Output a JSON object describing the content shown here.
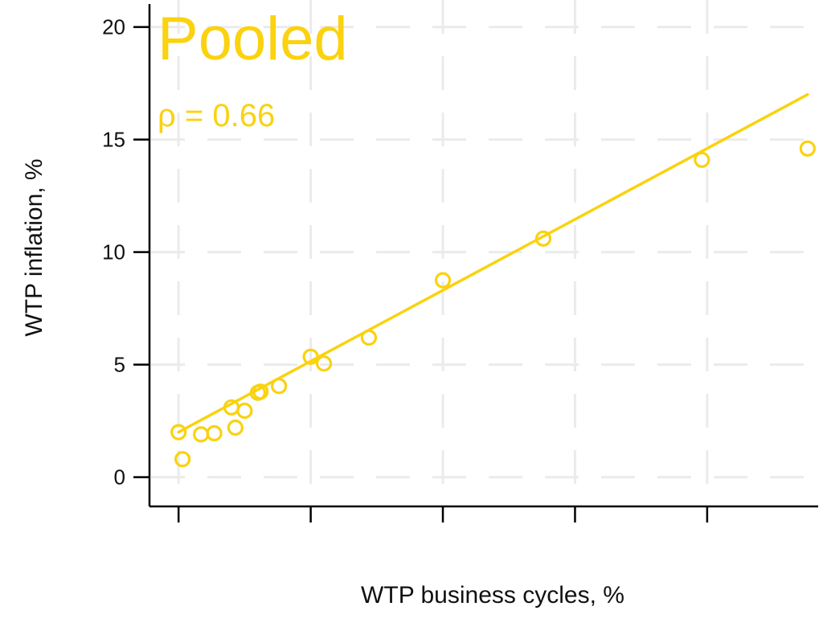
{
  "chart_data": {
    "type": "scatter",
    "title": "Pooled",
    "annotation": "ρ = 0.66",
    "xlabel": "WTP business cycles, %",
    "ylabel": "WTP inflation, %",
    "xlim": [
      -1.1,
      24.2
    ],
    "ylim": [
      -1.3,
      21.2
    ],
    "x_ticks": [
      0,
      5,
      10,
      15,
      20,
      25
    ],
    "y_ticks": [
      0,
      5,
      10,
      15,
      20
    ],
    "y_tick_labels": [
      "0",
      "5",
      "10",
      "15",
      "20"
    ],
    "grid": true,
    "color": "#FAD20F",
    "grid_color": "#EBEBEB",
    "series": [
      {
        "points": [
          {
            "x": 0.0,
            "y": 2.0
          },
          {
            "x": 0.15,
            "y": 0.8
          },
          {
            "x": 0.85,
            "y": 1.9
          },
          {
            "x": 1.35,
            "y": 1.95
          },
          {
            "x": 2.0,
            "y": 3.1
          },
          {
            "x": 2.15,
            "y": 2.2
          },
          {
            "x": 2.5,
            "y": 2.95
          },
          {
            "x": 3.0,
            "y": 3.75
          },
          {
            "x": 3.1,
            "y": 3.8
          },
          {
            "x": 3.8,
            "y": 4.05
          },
          {
            "x": 5.0,
            "y": 5.35
          },
          {
            "x": 5.5,
            "y": 5.05
          },
          {
            "x": 7.2,
            "y": 6.2
          },
          {
            "x": 10.0,
            "y": 8.75
          },
          {
            "x": 13.8,
            "y": 10.6
          },
          {
            "x": 19.8,
            "y": 14.1
          },
          {
            "x": 23.8,
            "y": 14.6
          }
        ]
      }
    ],
    "trendline": {
      "x": [
        0.0,
        23.8
      ],
      "y": [
        2.0,
        17.0
      ]
    }
  }
}
